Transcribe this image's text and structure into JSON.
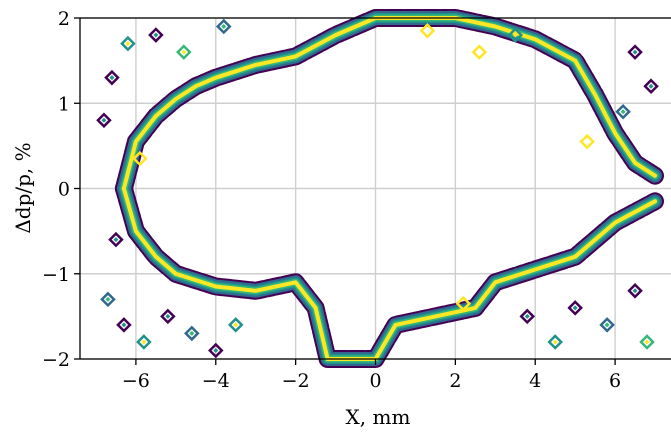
{
  "chart_data": {
    "type": "contour",
    "xlabel": "X, mm",
    "ylabel": "Δdp/p, %",
    "xlim": [
      -7.4,
      7.4
    ],
    "ylim": [
      -2,
      2
    ],
    "xticks": [
      -6,
      -4,
      -2,
      0,
      2,
      4,
      6
    ],
    "xtick_labels": [
      "−6",
      "−4",
      "−2",
      "0",
      "2",
      "4",
      "6"
    ],
    "yticks": [
      -2,
      -1,
      0,
      1,
      2
    ],
    "ytick_labels": [
      "−2",
      "−1",
      "0",
      "1",
      "2"
    ],
    "grid": true,
    "colormap": "viridis",
    "level_colors": [
      "#440154",
      "#31688e",
      "#21918c",
      "#35b779",
      "#fde725"
    ],
    "stable_region_boundary": {
      "upper": [
        {
          "x": -6.3,
          "y": 0.0
        },
        {
          "x": -6.0,
          "y": 0.55
        },
        {
          "x": -5.5,
          "y": 0.85
        },
        {
          "x": -5.0,
          "y": 1.05
        },
        {
          "x": -4.5,
          "y": 1.2
        },
        {
          "x": -4.0,
          "y": 1.3
        },
        {
          "x": -3.0,
          "y": 1.45
        },
        {
          "x": -2.0,
          "y": 1.55
        },
        {
          "x": -1.0,
          "y": 1.8
        },
        {
          "x": 0.0,
          "y": 2.0
        },
        {
          "x": 1.0,
          "y": 2.0
        },
        {
          "x": 2.0,
          "y": 2.0
        },
        {
          "x": 3.0,
          "y": 1.9
        },
        {
          "x": 4.0,
          "y": 1.75
        },
        {
          "x": 5.0,
          "y": 1.5
        },
        {
          "x": 5.5,
          "y": 1.1
        },
        {
          "x": 6.0,
          "y": 0.65
        },
        {
          "x": 6.5,
          "y": 0.3
        },
        {
          "x": 7.0,
          "y": 0.15
        }
      ],
      "lower": [
        {
          "x": -6.3,
          "y": 0.0
        },
        {
          "x": -6.0,
          "y": -0.5
        },
        {
          "x": -5.5,
          "y": -0.8
        },
        {
          "x": -5.0,
          "y": -1.0
        },
        {
          "x": -4.0,
          "y": -1.15
        },
        {
          "x": -3.0,
          "y": -1.2
        },
        {
          "x": -2.0,
          "y": -1.1
        },
        {
          "x": -1.5,
          "y": -1.4
        },
        {
          "x": -1.2,
          "y": -2.0
        },
        {
          "x": 0.0,
          "y": -2.0
        },
        {
          "x": 0.5,
          "y": -1.6
        },
        {
          "x": 1.5,
          "y": -1.5
        },
        {
          "x": 2.5,
          "y": -1.4
        },
        {
          "x": 3.0,
          "y": -1.1
        },
        {
          "x": 4.0,
          "y": -0.95
        },
        {
          "x": 5.0,
          "y": -0.8
        },
        {
          "x": 5.5,
          "y": -0.6
        },
        {
          "x": 6.0,
          "y": -0.4
        },
        {
          "x": 7.0,
          "y": -0.15
        }
      ]
    },
    "islands": [
      {
        "x": -6.6,
        "y": 1.3,
        "level": 0
      },
      {
        "x": -6.8,
        "y": 0.8,
        "level": 0
      },
      {
        "x": -6.5,
        "y": -0.6,
        "level": 0
      },
      {
        "x": -6.7,
        "y": -1.3,
        "level": 1
      },
      {
        "x": -6.3,
        "y": -1.6,
        "level": 0
      },
      {
        "x": -5.8,
        "y": -1.8,
        "level": 2
      },
      {
        "x": -5.2,
        "y": -1.5,
        "level": 0
      },
      {
        "x": -4.6,
        "y": -1.7,
        "level": 1
      },
      {
        "x": -4.0,
        "y": -1.9,
        "level": 0
      },
      {
        "x": -3.5,
        "y": -1.6,
        "level": 2
      },
      {
        "x": -5.5,
        "y": 1.8,
        "level": 0
      },
      {
        "x": -4.8,
        "y": 1.6,
        "level": 3
      },
      {
        "x": -3.8,
        "y": 1.9,
        "level": 1
      },
      {
        "x": -6.2,
        "y": 1.7,
        "level": 2
      },
      {
        "x": -5.9,
        "y": 0.35,
        "level": 4
      },
      {
        "x": 1.3,
        "y": 1.85,
        "level": 4
      },
      {
        "x": 2.6,
        "y": 1.6,
        "level": 4
      },
      {
        "x": 3.5,
        "y": 1.8,
        "level": 2
      },
      {
        "x": 6.5,
        "y": 1.6,
        "level": 0
      },
      {
        "x": 6.9,
        "y": 1.2,
        "level": 0
      },
      {
        "x": 6.2,
        "y": 0.9,
        "level": 1
      },
      {
        "x": 5.0,
        "y": -1.4,
        "level": 0
      },
      {
        "x": 5.8,
        "y": -1.6,
        "level": 1
      },
      {
        "x": 6.5,
        "y": -1.2,
        "level": 0
      },
      {
        "x": 4.5,
        "y": -1.8,
        "level": 2
      },
      {
        "x": 3.8,
        "y": -1.5,
        "level": 0
      },
      {
        "x": 6.8,
        "y": -1.8,
        "level": 3
      },
      {
        "x": 5.3,
        "y": 0.55,
        "level": 4
      },
      {
        "x": 2.2,
        "y": -1.35,
        "level": 4
      }
    ]
  }
}
